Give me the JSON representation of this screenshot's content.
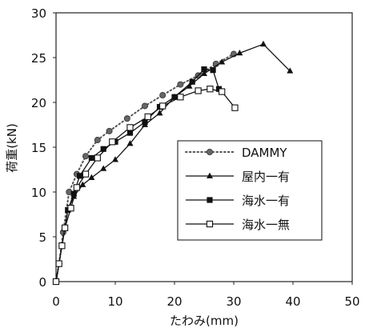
{
  "chart_data": {
    "type": "line",
    "xlabel": "たわみ(mm)",
    "ylabel": "荷重(kN)",
    "xlim": [
      0,
      50
    ],
    "ylim": [
      0,
      30
    ],
    "xticks": [
      0,
      10,
      20,
      30,
      40,
      50
    ],
    "yticks": [
      0,
      5,
      10,
      15,
      20,
      25,
      30
    ],
    "grid": "horizontal",
    "legend_position": "center-right",
    "series": [
      {
        "name": "DAMMY",
        "style": "dotted",
        "marker": "circle",
        "color": "#555555",
        "x": [
          0,
          0.5,
          1.2,
          2.2,
          3.5,
          5,
          7,
          9,
          12,
          15,
          18,
          21,
          24,
          27,
          30
        ],
        "y": [
          0,
          2,
          5.5,
          10,
          12,
          14,
          15.8,
          16.8,
          18.2,
          19.6,
          20.8,
          22,
          23,
          24.3,
          25.4
        ]
      },
      {
        "name": "屋内一有",
        "style": "solid",
        "marker": "triangle",
        "color": "#111111",
        "x": [
          0,
          0.5,
          1,
          1.5,
          2,
          3,
          4.5,
          6,
          8,
          10,
          12.5,
          15,
          17.5,
          20,
          22.5,
          25,
          28,
          31,
          35,
          39.5
        ],
        "y": [
          0,
          2,
          4,
          6,
          8,
          9.5,
          10.8,
          11.6,
          12.6,
          13.6,
          15.4,
          17.5,
          18.8,
          20.6,
          21.8,
          23.2,
          24.5,
          25.5,
          26.5,
          23.5
        ]
      },
      {
        "name": "海水一有",
        "style": "solid",
        "marker": "square",
        "color": "#111111",
        "x": [
          0,
          0.5,
          1,
          1.5,
          2,
          3,
          4,
          6,
          8,
          10,
          12.5,
          15,
          17.5,
          20,
          23,
          25,
          26.5,
          27.5
        ],
        "y": [
          0,
          2,
          4,
          6,
          8,
          9.8,
          11.8,
          13.8,
          14.8,
          15.6,
          16.6,
          17.8,
          19.5,
          20.6,
          22.3,
          23.7,
          23.6,
          21.5
        ]
      },
      {
        "name": "海水一無",
        "style": "solid",
        "marker": "square-open",
        "color": "#111111",
        "x": [
          0,
          0.5,
          1,
          1.5,
          2.5,
          3.5,
          5,
          7,
          9.5,
          12.5,
          15.5,
          18,
          21,
          24,
          26,
          28,
          30.2
        ],
        "y": [
          0,
          2,
          4,
          6,
          8.2,
          10.5,
          12,
          13.8,
          15.6,
          17.2,
          18.4,
          19.6,
          20.6,
          21.3,
          21.5,
          21.2,
          19.4
        ]
      }
    ]
  }
}
